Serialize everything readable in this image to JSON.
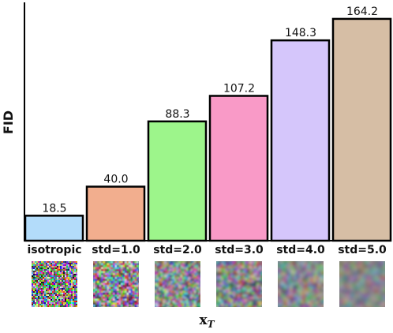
{
  "chart_data": {
    "type": "bar",
    "categories": [
      "isotropic",
      "std=1.0",
      "std=2.0",
      "std=3.0",
      "std=4.0",
      "std=5.0"
    ],
    "values": [
      18.5,
      40.0,
      88.3,
      107.2,
      148.3,
      164.2
    ],
    "value_labels": [
      "18.5",
      "40.0",
      "88.3",
      "107.2",
      "148.3",
      "164.2"
    ],
    "ylabel": "FID",
    "xlabel": "x",
    "xlabel_sub": "T",
    "ylim": [
      0,
      170
    ],
    "grid": false,
    "legend": "none",
    "bar_colors": [
      "#b3dcfa",
      "#f2ae8e",
      "#9df58b",
      "#f99ac7",
      "#d5c6fb",
      "#d6bea5"
    ],
    "noise_thumbnails": [
      {
        "label": "isotropic",
        "blur": 0
      },
      {
        "label": "std=1.0",
        "blur": 1
      },
      {
        "label": "std=2.0",
        "blur": 2
      },
      {
        "label": "std=3.0",
        "blur": 3
      },
      {
        "label": "std=4.0",
        "blur": 4
      },
      {
        "label": "std=5.0",
        "blur": 5
      }
    ]
  }
}
